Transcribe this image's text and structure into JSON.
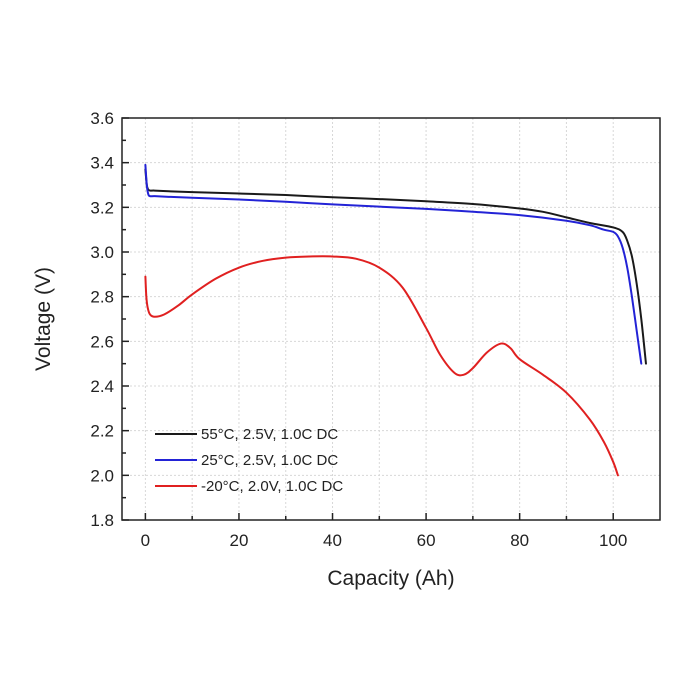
{
  "chart_data": {
    "type": "line",
    "title": "",
    "xlabel": "Capacity (Ah)",
    "ylabel": "Voltage (V)",
    "xlim": [
      -5,
      110
    ],
    "ylim": [
      1.8,
      3.6
    ],
    "xticks": [
      0,
      20,
      40,
      60,
      80,
      100
    ],
    "xtick_labels": [
      "0",
      "20",
      "40",
      "60",
      "80",
      "100"
    ],
    "yticks": [
      1.8,
      2.0,
      2.2,
      2.4,
      2.6,
      2.8,
      3.0,
      3.2,
      3.4,
      3.6
    ],
    "ytick_labels": [
      "1.8",
      "2.0",
      "2.2",
      "2.4",
      "2.6",
      "2.8",
      "3.0",
      "3.2",
      "3.4",
      "3.6"
    ],
    "grid": true,
    "legend_position": "bottom-left",
    "series": [
      {
        "name": "55°C, 2.5V, 1.0C DC",
        "color": "#1a1a1a",
        "x": [
          0,
          0.3,
          0.6,
          1.0,
          2,
          5,
          10,
          20,
          30,
          40,
          50,
          60,
          70,
          80,
          85,
          90,
          95,
          100,
          102,
          103,
          104,
          105,
          106,
          107
        ],
        "y": [
          3.37,
          3.3,
          3.28,
          3.275,
          3.275,
          3.272,
          3.268,
          3.262,
          3.255,
          3.245,
          3.237,
          3.227,
          3.215,
          3.195,
          3.18,
          3.155,
          3.13,
          3.11,
          3.09,
          3.05,
          2.98,
          2.86,
          2.7,
          2.5
        ]
      },
      {
        "name": "25°C, 2.5V, 1.0C DC",
        "color": "#2323d6",
        "x": [
          0,
          0.3,
          0.6,
          1.0,
          2,
          5,
          10,
          20,
          30,
          40,
          50,
          60,
          70,
          80,
          90,
          95,
          98,
          100,
          101,
          102,
          103,
          104,
          105,
          106
        ],
        "y": [
          3.39,
          3.3,
          3.26,
          3.25,
          3.25,
          3.247,
          3.243,
          3.235,
          3.225,
          3.213,
          3.203,
          3.193,
          3.18,
          3.165,
          3.14,
          3.12,
          3.1,
          3.09,
          3.07,
          3.02,
          2.93,
          2.8,
          2.65,
          2.5
        ]
      },
      {
        "name": "-20°C, 2.0V, 1.0C DC",
        "color": "#e02020",
        "x": [
          0,
          0.2,
          0.5,
          1,
          2,
          4,
          7,
          10,
          15,
          20,
          25,
          30,
          35,
          40,
          45,
          50,
          55,
          60,
          63,
          66,
          68,
          70,
          73,
          76,
          78,
          80,
          85,
          90,
          95,
          98,
          100,
          101
        ],
        "y": [
          2.89,
          2.8,
          2.75,
          2.72,
          2.71,
          2.72,
          2.76,
          2.81,
          2.88,
          2.93,
          2.96,
          2.975,
          2.98,
          2.98,
          2.97,
          2.93,
          2.84,
          2.66,
          2.54,
          2.46,
          2.45,
          2.48,
          2.55,
          2.59,
          2.57,
          2.52,
          2.45,
          2.37,
          2.25,
          2.15,
          2.06,
          2.0
        ]
      }
    ]
  }
}
